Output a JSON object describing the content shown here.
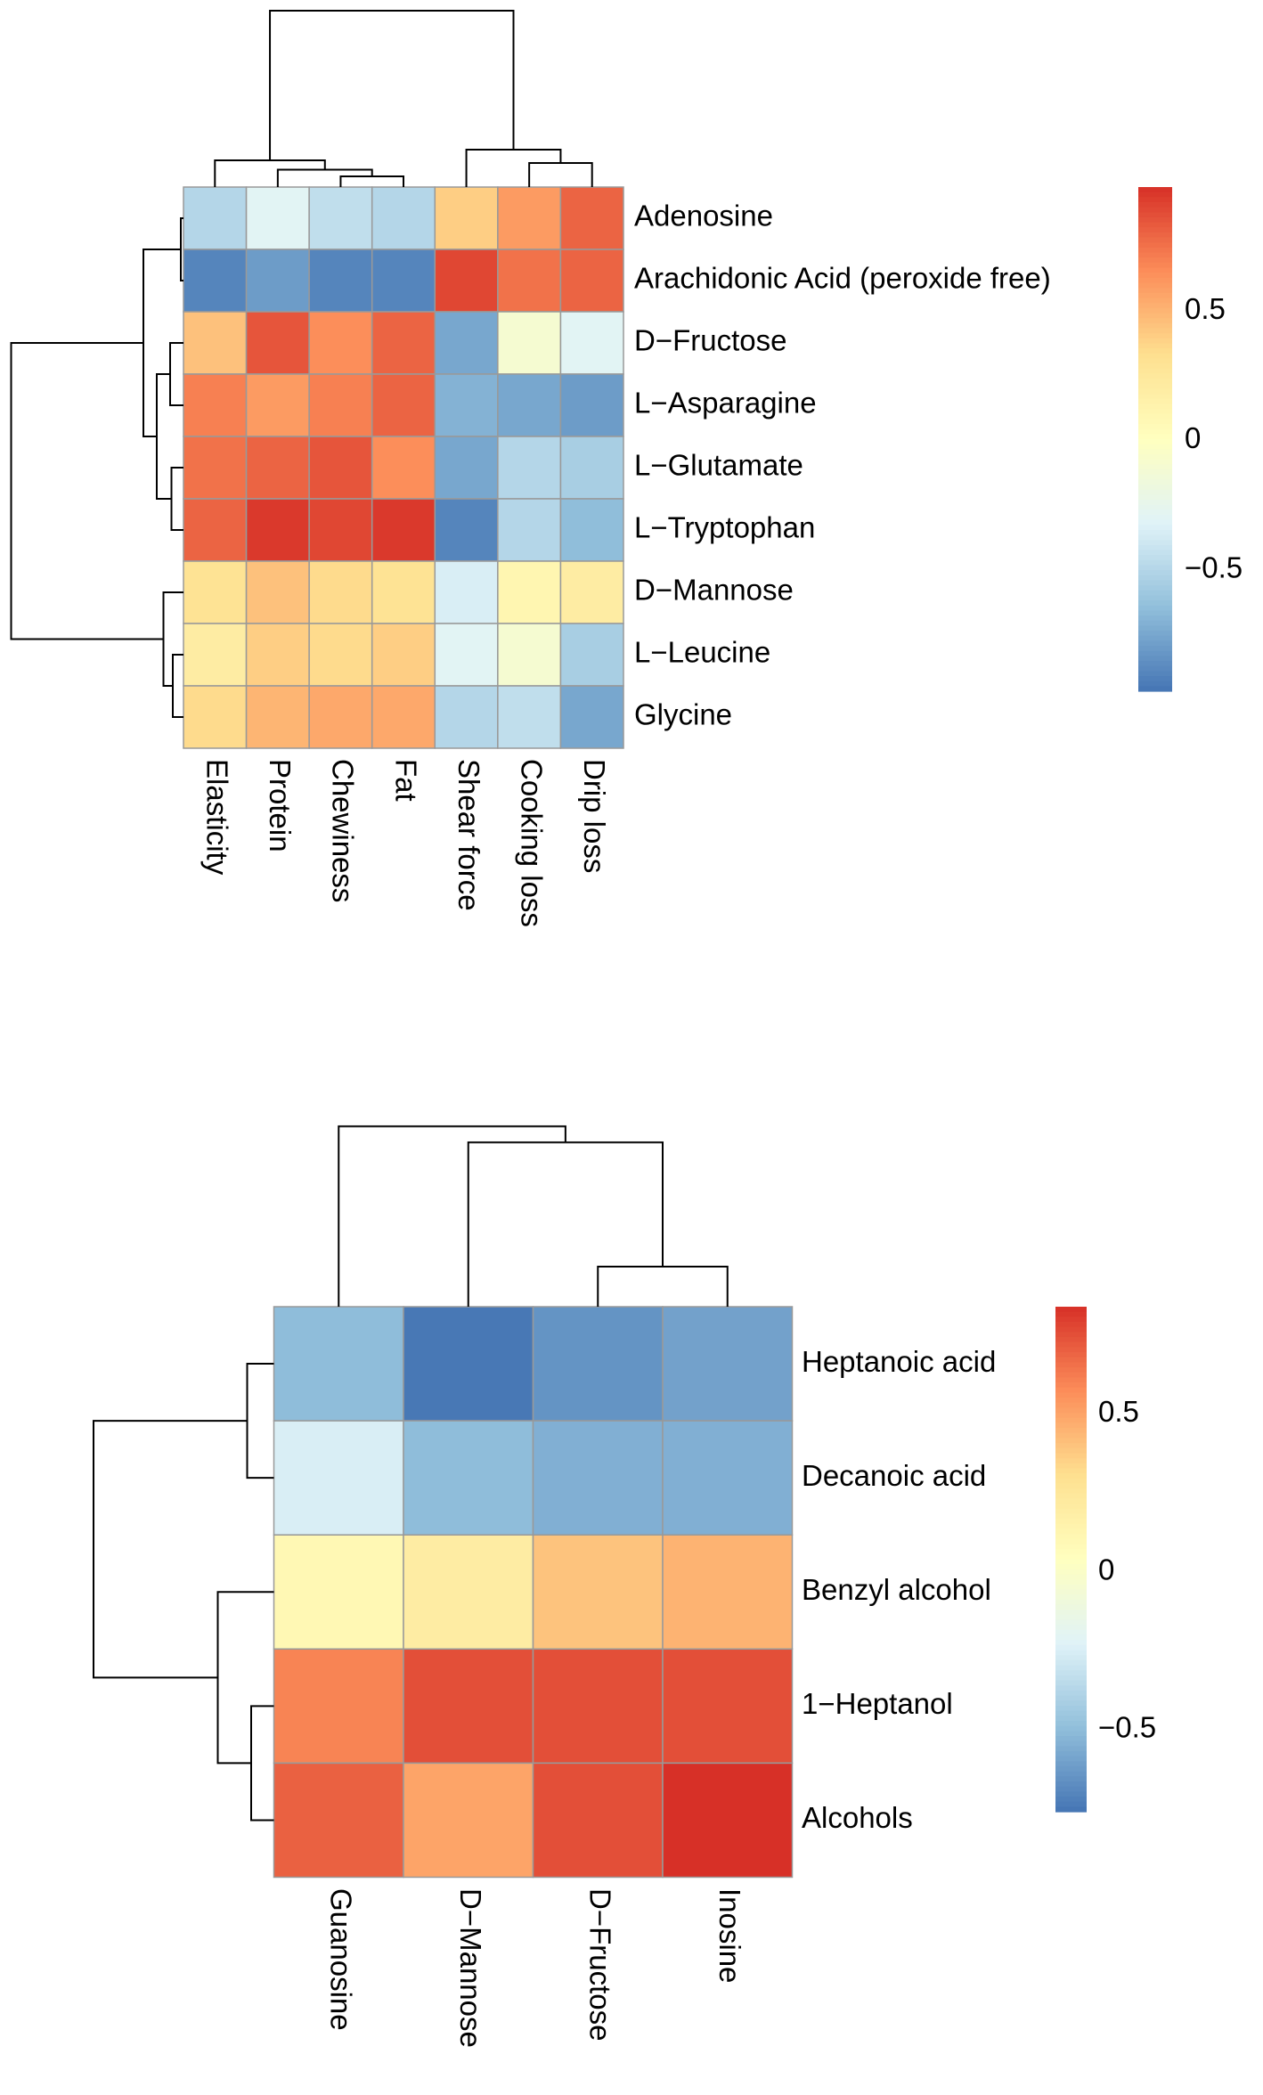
{
  "chart_data": [
    {
      "type": "heatmap",
      "rows": [
        "Adenosine",
        "Arachidonic Acid (peroxide free)",
        "D−Fructose",
        "L−Asparagine",
        "L−Glutamate",
        "L−Tryptophan",
        "D−Mannose",
        "L−Leucine",
        "Glycine"
      ],
      "columns": [
        "Elasticity",
        "Protein",
        "Chewiness",
        "Fat",
        "Shear force",
        "Cooking loss",
        "Drip loss"
      ],
      "values": [
        [
          -0.5,
          -0.3,
          -0.45,
          -0.5,
          0.4,
          0.6,
          0.8
        ],
        [
          -0.9,
          -0.8,
          -0.9,
          -0.9,
          0.9,
          0.75,
          0.8
        ],
        [
          0.45,
          0.85,
          0.65,
          0.8,
          -0.75,
          -0.1,
          -0.3
        ],
        [
          0.7,
          0.6,
          0.7,
          0.8,
          -0.7,
          -0.75,
          -0.8
        ],
        [
          0.75,
          0.8,
          0.85,
          0.65,
          -0.75,
          -0.5,
          -0.55
        ],
        [
          0.8,
          0.95,
          0.9,
          0.95,
          -0.9,
          -0.5,
          -0.65
        ],
        [
          0.3,
          0.45,
          0.35,
          0.3,
          -0.35,
          0.1,
          0.2
        ],
        [
          0.2,
          0.4,
          0.35,
          0.4,
          -0.3,
          -0.1,
          -0.55
        ],
        [
          0.35,
          0.5,
          0.55,
          0.55,
          -0.5,
          -0.45,
          -0.75
        ]
      ],
      "colorscale": [
        "#4575b4",
        "#91bfdb",
        "#e0f3f8",
        "#ffffbf",
        "#fee090",
        "#fc8d59",
        "#d73027"
      ],
      "zlim": [
        -0.97,
        0.98
      ],
      "zticks": [
        {
          "value": -0.5,
          "label": "−0.5"
        },
        0,
        0.5
      ]
    },
    {
      "type": "heatmap",
      "rows": [
        "Heptanoic acid",
        "Decanoic acid",
        "Benzyl alcohol",
        "1−Heptanol",
        "Alcohols"
      ],
      "columns": [
        "Guanosine",
        "D−Mannose",
        "D−Fructose",
        "Inosine"
      ],
      "values": [
        [
          -0.5,
          -0.75,
          -0.65,
          -0.6
        ],
        [
          -0.25,
          -0.5,
          -0.55,
          -0.55
        ],
        [
          0.1,
          0.2,
          0.4,
          0.45
        ],
        [
          0.6,
          0.75,
          0.75,
          0.75
        ],
        [
          0.7,
          0.5,
          0.75,
          0.85
        ]
      ],
      "colorscale": [
        "#4575b4",
        "#91bfdb",
        "#e0f3f8",
        "#ffffbf",
        "#fee090",
        "#fc8d59",
        "#d73027"
      ],
      "zlim": [
        -0.76,
        0.84
      ],
      "zticks": [
        {
          "value": -0.5,
          "label": "−0.5"
        },
        0,
        0.5
      ]
    }
  ]
}
